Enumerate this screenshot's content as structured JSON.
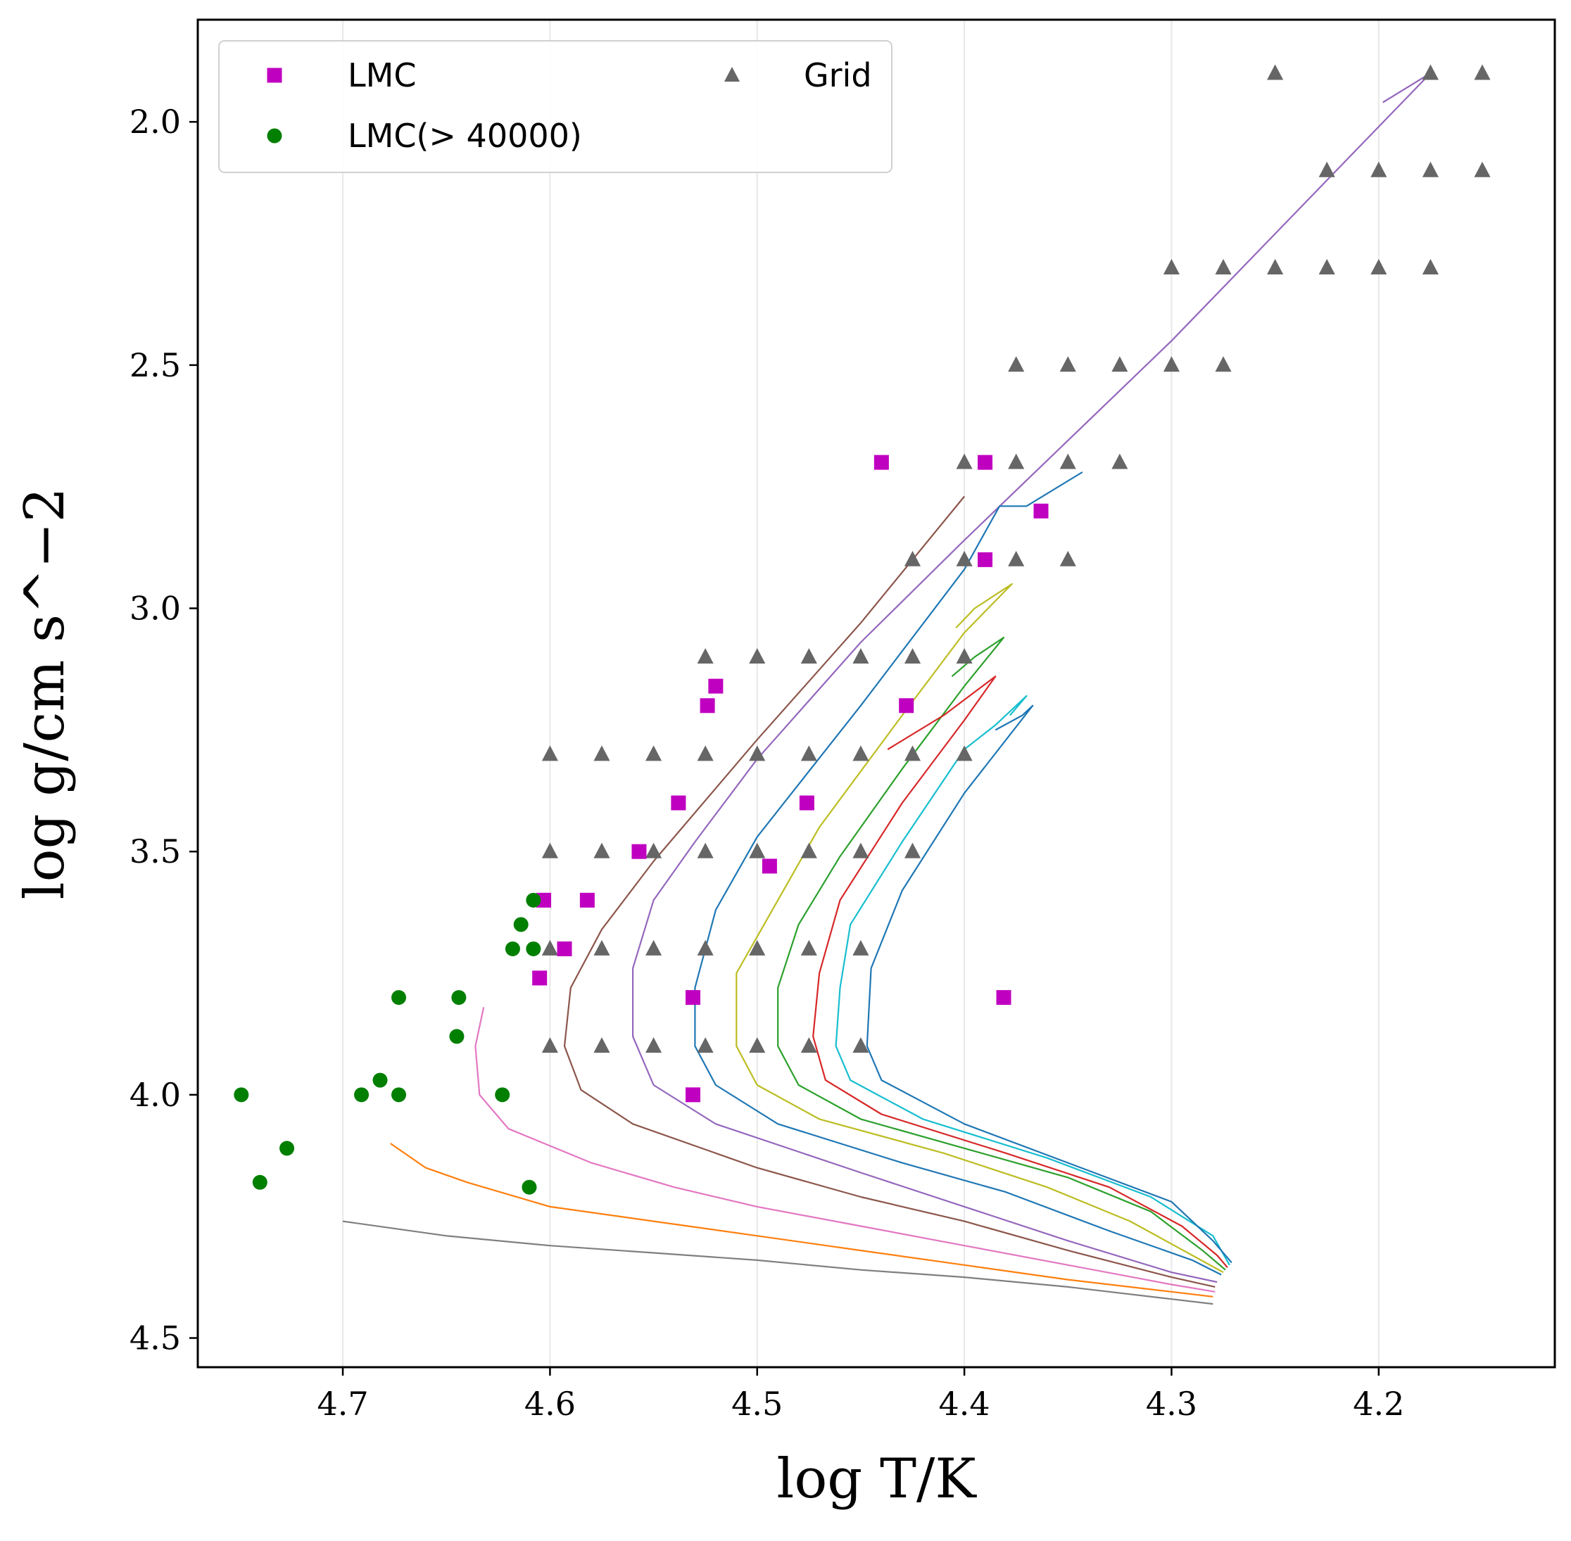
{
  "chart_data": {
    "type": "scatter",
    "xlabel": "log T/K",
    "ylabel": "log g/cm s^−2",
    "xlim": [
      4.77,
      4.115
    ],
    "ylim": [
      4.56,
      1.79
    ],
    "x_inverted": true,
    "y_inverted": true,
    "xticks": [
      {
        "value": 4.7,
        "label": "4.7"
      },
      {
        "value": 4.6,
        "label": "4.6"
      },
      {
        "value": 4.5,
        "label": "4.5"
      },
      {
        "value": 4.4,
        "label": "4.4"
      },
      {
        "value": 4.3,
        "label": "4.3"
      },
      {
        "value": 4.2,
        "label": "4.2"
      }
    ],
    "yticks": [
      {
        "value": 2.0,
        "label": "2.0"
      },
      {
        "value": 2.5,
        "label": "2.5"
      },
      {
        "value": 3.0,
        "label": "3.0"
      },
      {
        "value": 3.5,
        "label": "3.5"
      },
      {
        "value": 4.0,
        "label": "4.0"
      },
      {
        "value": 4.5,
        "label": "4.5"
      }
    ],
    "grid": "vertical",
    "legend": {
      "placement": "top-left",
      "entries": [
        {
          "label": "LMC",
          "marker": "square",
          "color": "#c000c0"
        },
        {
          "label": "LMC(> 40000)",
          "marker": "circle",
          "color": "#007f00"
        },
        {
          "label": "Grid",
          "marker": "triangle",
          "color": "#666666"
        }
      ]
    },
    "scatter_series": [
      {
        "name": "LMC",
        "marker": "square",
        "color": "#c000c0",
        "points": [
          [
            4.44,
            2.7
          ],
          [
            4.39,
            2.7
          ],
          [
            4.363,
            2.8
          ],
          [
            4.39,
            2.9
          ],
          [
            4.52,
            3.16
          ],
          [
            4.524,
            3.2
          ],
          [
            4.428,
            3.2
          ],
          [
            4.538,
            3.4
          ],
          [
            4.476,
            3.4
          ],
          [
            4.557,
            3.5
          ],
          [
            4.494,
            3.53
          ],
          [
            4.603,
            3.6
          ],
          [
            4.582,
            3.6
          ],
          [
            4.593,
            3.7
          ],
          [
            4.605,
            3.76
          ],
          [
            4.531,
            3.8
          ],
          [
            4.381,
            3.8
          ],
          [
            4.531,
            4.0
          ]
        ]
      },
      {
        "name": "LMC(> 40000)",
        "marker": "circle",
        "color": "#007f00",
        "points": [
          [
            4.608,
            3.6
          ],
          [
            4.614,
            3.65
          ],
          [
            4.618,
            3.7
          ],
          [
            4.608,
            3.7
          ],
          [
            4.673,
            3.8
          ],
          [
            4.644,
            3.8
          ],
          [
            4.645,
            3.88
          ],
          [
            4.749,
            4.0
          ],
          [
            4.691,
            4.0
          ],
          [
            4.682,
            3.97
          ],
          [
            4.673,
            4.0
          ],
          [
            4.623,
            4.0
          ],
          [
            4.727,
            4.11
          ],
          [
            4.74,
            4.18
          ],
          [
            4.61,
            4.19
          ]
        ]
      },
      {
        "name": "Grid",
        "marker": "triangle",
        "color": "#666666",
        "points": [
          [
            4.25,
            1.9
          ],
          [
            4.175,
            1.9
          ],
          [
            4.15,
            1.9
          ],
          [
            4.225,
            2.1
          ],
          [
            4.2,
            2.1
          ],
          [
            4.175,
            2.1
          ],
          [
            4.15,
            2.1
          ],
          [
            4.3,
            2.3
          ],
          [
            4.275,
            2.3
          ],
          [
            4.25,
            2.3
          ],
          [
            4.225,
            2.3
          ],
          [
            4.2,
            2.3
          ],
          [
            4.175,
            2.3
          ],
          [
            4.375,
            2.5
          ],
          [
            4.35,
            2.5
          ],
          [
            4.325,
            2.5
          ],
          [
            4.3,
            2.5
          ],
          [
            4.275,
            2.5
          ],
          [
            4.4,
            2.7
          ],
          [
            4.375,
            2.7
          ],
          [
            4.35,
            2.7
          ],
          [
            4.325,
            2.7
          ],
          [
            4.425,
            2.9
          ],
          [
            4.4,
            2.9
          ],
          [
            4.375,
            2.9
          ],
          [
            4.35,
            2.9
          ],
          [
            4.525,
            3.1
          ],
          [
            4.5,
            3.1
          ],
          [
            4.475,
            3.1
          ],
          [
            4.45,
            3.1
          ],
          [
            4.425,
            3.1
          ],
          [
            4.4,
            3.1
          ],
          [
            4.6,
            3.3
          ],
          [
            4.575,
            3.3
          ],
          [
            4.55,
            3.3
          ],
          [
            4.525,
            3.3
          ],
          [
            4.5,
            3.3
          ],
          [
            4.475,
            3.3
          ],
          [
            4.45,
            3.3
          ],
          [
            4.425,
            3.3
          ],
          [
            4.4,
            3.3
          ],
          [
            4.6,
            3.5
          ],
          [
            4.575,
            3.5
          ],
          [
            4.55,
            3.5
          ],
          [
            4.525,
            3.5
          ],
          [
            4.5,
            3.5
          ],
          [
            4.475,
            3.5
          ],
          [
            4.45,
            3.5
          ],
          [
            4.425,
            3.5
          ],
          [
            4.6,
            3.7
          ],
          [
            4.575,
            3.7
          ],
          [
            4.55,
            3.7
          ],
          [
            4.525,
            3.7
          ],
          [
            4.5,
            3.7
          ],
          [
            4.475,
            3.7
          ],
          [
            4.45,
            3.7
          ],
          [
            4.6,
            3.9
          ],
          [
            4.575,
            3.9
          ],
          [
            4.55,
            3.9
          ],
          [
            4.525,
            3.9
          ],
          [
            4.5,
            3.9
          ],
          [
            4.475,
            3.9
          ],
          [
            4.45,
            3.9
          ]
        ]
      }
    ],
    "line_series": [
      {
        "color": "#7f7f7f",
        "points": [
          [
            4.7,
            4.26
          ],
          [
            4.65,
            4.29
          ],
          [
            4.6,
            4.31
          ],
          [
            4.55,
            4.325
          ],
          [
            4.5,
            4.34
          ],
          [
            4.45,
            4.36
          ],
          [
            4.4,
            4.375
          ],
          [
            4.35,
            4.395
          ],
          [
            4.3,
            4.42
          ],
          [
            4.28,
            4.43
          ]
        ]
      },
      {
        "color": "#ff7f0e",
        "points": [
          [
            4.677,
            4.1
          ],
          [
            4.66,
            4.15
          ],
          [
            4.64,
            4.18
          ],
          [
            4.6,
            4.23
          ],
          [
            4.55,
            4.26
          ],
          [
            4.5,
            4.29
          ],
          [
            4.45,
            4.32
          ],
          [
            4.4,
            4.35
          ],
          [
            4.35,
            4.38
          ],
          [
            4.3,
            4.405
          ],
          [
            4.28,
            4.415
          ]
        ]
      },
      {
        "color": "#e377c2",
        "points": [
          [
            4.632,
            3.82
          ],
          [
            4.636,
            3.9
          ],
          [
            4.634,
            4.0
          ],
          [
            4.62,
            4.07
          ],
          [
            4.58,
            4.14
          ],
          [
            4.54,
            4.19
          ],
          [
            4.5,
            4.23
          ],
          [
            4.45,
            4.27
          ],
          [
            4.4,
            4.31
          ],
          [
            4.35,
            4.35
          ],
          [
            4.3,
            4.39
          ],
          [
            4.279,
            4.405
          ]
        ]
      },
      {
        "color": "#8c564b",
        "points": [
          [
            4.4,
            2.77
          ],
          [
            4.45,
            3.03
          ],
          [
            4.5,
            3.27
          ],
          [
            4.55,
            3.52
          ],
          [
            4.575,
            3.66
          ],
          [
            4.59,
            3.78
          ],
          [
            4.593,
            3.9
          ],
          [
            4.585,
            3.99
          ],
          [
            4.56,
            4.06
          ],
          [
            4.5,
            4.15
          ],
          [
            4.45,
            4.21
          ],
          [
            4.4,
            4.26
          ],
          [
            4.35,
            4.32
          ],
          [
            4.3,
            4.375
          ],
          [
            4.279,
            4.395
          ]
        ]
      },
      {
        "color": "#9467bd",
        "points": [
          [
            4.198,
            1.96
          ],
          [
            4.175,
            1.9
          ],
          [
            4.3,
            2.45
          ],
          [
            4.4,
            2.86
          ],
          [
            4.45,
            3.07
          ],
          [
            4.5,
            3.31
          ],
          [
            4.53,
            3.48
          ],
          [
            4.55,
            3.6
          ],
          [
            4.56,
            3.74
          ],
          [
            4.56,
            3.88
          ],
          [
            4.55,
            3.98
          ],
          [
            4.52,
            4.06
          ],
          [
            4.45,
            4.16
          ],
          [
            4.4,
            4.23
          ],
          [
            4.35,
            4.3
          ],
          [
            4.3,
            4.365
          ],
          [
            4.278,
            4.385
          ]
        ]
      },
      {
        "color": "#1f77b4",
        "points": [
          [
            4.343,
            2.72
          ],
          [
            4.37,
            2.79
          ],
          [
            4.383,
            2.79
          ],
          [
            4.4,
            2.92
          ],
          [
            4.45,
            3.2
          ],
          [
            4.5,
            3.47
          ],
          [
            4.52,
            3.62
          ],
          [
            4.53,
            3.78
          ],
          [
            4.53,
            3.9
          ],
          [
            4.52,
            3.98
          ],
          [
            4.49,
            4.06
          ],
          [
            4.43,
            4.14
          ],
          [
            4.38,
            4.2
          ],
          [
            4.33,
            4.28
          ],
          [
            4.29,
            4.34
          ],
          [
            4.276,
            4.37
          ]
        ]
      },
      {
        "color": "#bcbd22",
        "points": [
          [
            4.404,
            3.04
          ],
          [
            4.395,
            3.0
          ],
          [
            4.377,
            2.95
          ],
          [
            4.4,
            3.05
          ],
          [
            4.43,
            3.22
          ],
          [
            4.47,
            3.45
          ],
          [
            4.49,
            3.6
          ],
          [
            4.51,
            3.75
          ],
          [
            4.51,
            3.9
          ],
          [
            4.5,
            3.98
          ],
          [
            4.47,
            4.05
          ],
          [
            4.41,
            4.12
          ],
          [
            4.36,
            4.19
          ],
          [
            4.32,
            4.26
          ],
          [
            4.29,
            4.33
          ],
          [
            4.275,
            4.365
          ]
        ]
      },
      {
        "color": "#2ca02c",
        "points": [
          [
            4.406,
            3.14
          ],
          [
            4.395,
            3.1
          ],
          [
            4.381,
            3.06
          ],
          [
            4.4,
            3.16
          ],
          [
            4.43,
            3.33
          ],
          [
            4.46,
            3.51
          ],
          [
            4.48,
            3.65
          ],
          [
            4.49,
            3.78
          ],
          [
            4.49,
            3.9
          ],
          [
            4.48,
            3.98
          ],
          [
            4.45,
            4.05
          ],
          [
            4.4,
            4.11
          ],
          [
            4.35,
            4.17
          ],
          [
            4.31,
            4.24
          ],
          [
            4.285,
            4.32
          ],
          [
            4.274,
            4.36
          ]
        ]
      },
      {
        "color": "#d62728",
        "points": [
          [
            4.437,
            3.29
          ],
          [
            4.41,
            3.22
          ],
          [
            4.385,
            3.14
          ],
          [
            4.4,
            3.23
          ],
          [
            4.43,
            3.4
          ],
          [
            4.46,
            3.6
          ],
          [
            4.47,
            3.75
          ],
          [
            4.473,
            3.88
          ],
          [
            4.467,
            3.97
          ],
          [
            4.44,
            4.04
          ],
          [
            4.38,
            4.12
          ],
          [
            4.33,
            4.19
          ],
          [
            4.295,
            4.27
          ],
          [
            4.278,
            4.33
          ],
          [
            4.273,
            4.355
          ]
        ]
      },
      {
        "color": "#17becf",
        "points": [
          [
            4.378,
            3.22
          ],
          [
            4.37,
            3.18
          ],
          [
            4.385,
            3.24
          ],
          [
            4.4,
            3.29
          ],
          [
            4.43,
            3.48
          ],
          [
            4.455,
            3.65
          ],
          [
            4.46,
            3.78
          ],
          [
            4.462,
            3.9
          ],
          [
            4.455,
            3.97
          ],
          [
            4.42,
            4.05
          ],
          [
            4.36,
            4.13
          ],
          [
            4.31,
            4.21
          ],
          [
            4.28,
            4.29
          ],
          [
            4.272,
            4.35
          ]
        ]
      },
      {
        "color": "#1f77b4",
        "points": [
          [
            4.385,
            3.25
          ],
          [
            4.372,
            3.22
          ],
          [
            4.367,
            3.2
          ],
          [
            4.4,
            3.38
          ],
          [
            4.43,
            3.58
          ],
          [
            4.445,
            3.74
          ],
          [
            4.447,
            3.9
          ],
          [
            4.44,
            3.97
          ],
          [
            4.4,
            4.06
          ],
          [
            4.35,
            4.14
          ],
          [
            4.3,
            4.22
          ],
          [
            4.28,
            4.3
          ],
          [
            4.271,
            4.345
          ]
        ]
      }
    ]
  }
}
